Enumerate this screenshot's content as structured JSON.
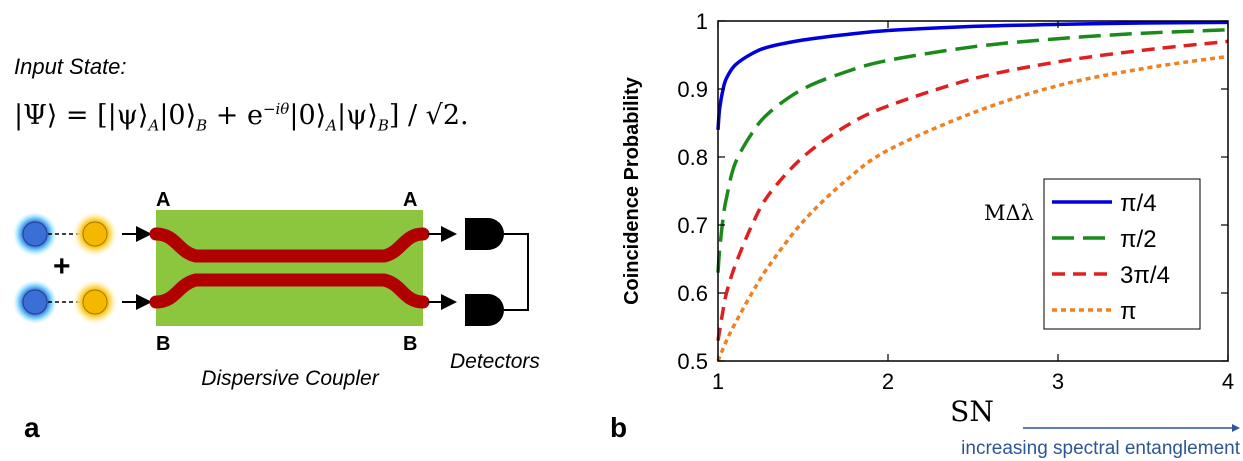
{
  "panel_a": {
    "input_state_label": "Input State:",
    "equation": {
      "lhs": "|Ψ⟩",
      "eq": "=",
      "term1": "[|ψ⟩",
      "sub_a": "A",
      "zero_b": "|0⟩",
      "sub_b": "B",
      "plus": " + e",
      "exponent": "−iθ",
      "zero_a": "|0⟩",
      "sub_a2": "A",
      "psi_b": "|ψ⟩",
      "sub_b2": "B",
      "close": "] / √2."
    },
    "plus_sign": "+",
    "port_a_left": "A",
    "port_a_right": "A",
    "port_b_left": "B",
    "port_b_right": "B",
    "coupler_label": "Dispersive Coupler",
    "detectors_label": "Detectors",
    "panel_letter": "a",
    "colors": {
      "chip": "#8cc63f",
      "waveguide": "#b00000",
      "photon_blue": "#3b6fd6",
      "photon_yellow": "#f5b800"
    }
  },
  "panel_b": {
    "panel_letter": "b",
    "footer_text": "increasing spectral entanglement",
    "arrow_color": "#2e5597"
  },
  "chart_data": {
    "type": "line",
    "xlabel": "SN",
    "ylabel": "Coincidence Probability",
    "xlim": [
      1,
      4
    ],
    "ylim": [
      0.5,
      1
    ],
    "xticks": [
      "1",
      "2",
      "3",
      "4"
    ],
    "yticks": [
      "0.5",
      "0.6",
      "0.7",
      "0.8",
      "0.9",
      "1"
    ],
    "legend_title": "MΔλ",
    "legend_position": "center-right",
    "series": [
      {
        "name": "π/4",
        "color": "#0000dd",
        "dash": "solid",
        "x": [
          1,
          1.01,
          1.03,
          1.05,
          1.1,
          1.2,
          1.3,
          1.5,
          1.75,
          2,
          2.5,
          3,
          3.5,
          4
        ],
        "y": [
          0.84,
          0.872,
          0.9,
          0.916,
          0.935,
          0.952,
          0.962,
          0.972,
          0.98,
          0.986,
          0.992,
          0.995,
          0.997,
          0.998
        ]
      },
      {
        "name": "π/2",
        "color": "#1a8a1a",
        "dash": "long",
        "x": [
          1,
          1.01,
          1.03,
          1.05,
          1.1,
          1.2,
          1.3,
          1.5,
          1.75,
          2,
          2.5,
          3,
          3.5,
          4
        ],
        "y": [
          0.63,
          0.665,
          0.71,
          0.74,
          0.79,
          0.835,
          0.865,
          0.9,
          0.925,
          0.942,
          0.962,
          0.974,
          0.982,
          0.987
        ]
      },
      {
        "name": "3π/4",
        "color": "#e02020",
        "dash": "medium",
        "x": [
          1,
          1.03,
          1.05,
          1.1,
          1.2,
          1.3,
          1.5,
          1.75,
          2,
          2.5,
          3,
          3.5,
          4
        ],
        "y": [
          0.53,
          0.575,
          0.6,
          0.64,
          0.7,
          0.745,
          0.8,
          0.845,
          0.875,
          0.915,
          0.94,
          0.957,
          0.97
        ]
      },
      {
        "name": "π",
        "color": "#f08020",
        "dash": "dot",
        "x": [
          1,
          1.05,
          1.1,
          1.2,
          1.3,
          1.5,
          1.75,
          2,
          2.5,
          3,
          3.5,
          4
        ],
        "y": [
          0.5,
          0.53,
          0.555,
          0.6,
          0.64,
          0.705,
          0.765,
          0.81,
          0.865,
          0.905,
          0.93,
          0.948
        ]
      }
    ]
  }
}
